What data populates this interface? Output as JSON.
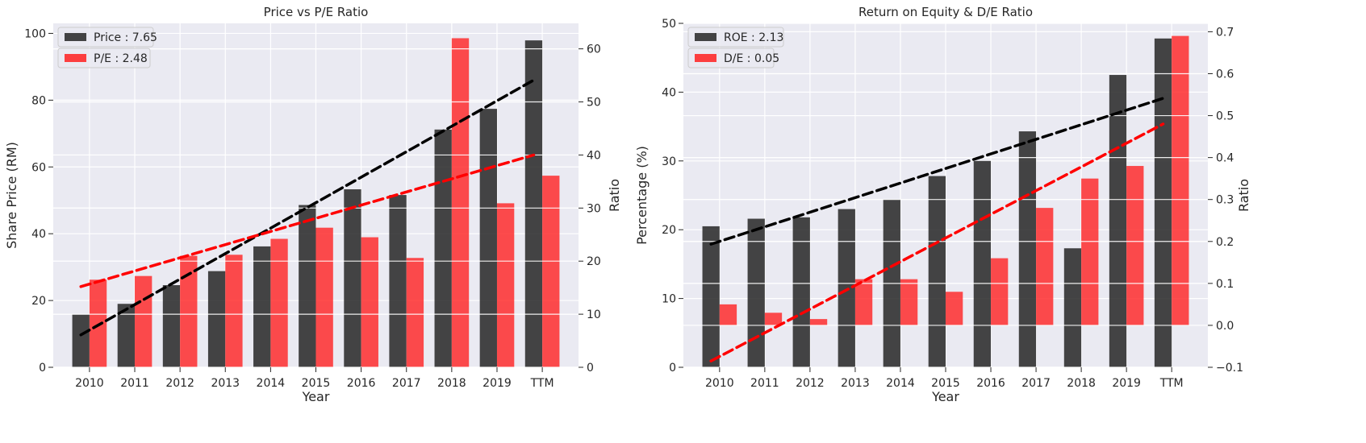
{
  "colors": {
    "background": "#eaeaf2",
    "grid": "#ffffff",
    "dark_bar": "#262626",
    "red_bar": "#ff2020",
    "trend_dark": "#000000",
    "trend_red": "#ff0000"
  },
  "chart_data": [
    {
      "type": "bar",
      "title": "Price vs P/E Ratio",
      "xlabel": "Year",
      "ylabel": "Share Price (RM)",
      "ylabel_right": "Ratio",
      "categories": [
        "2010",
        "2011",
        "2012",
        "2013",
        "2014",
        "2015",
        "2016",
        "2017",
        "2018",
        "2019",
        "TTM"
      ],
      "ylim": [
        0,
        103
      ],
      "ylim_right": [
        0,
        64.8
      ],
      "yticks": [
        "0",
        "20",
        "40",
        "60",
        "80",
        "100"
      ],
      "yticks_right": [
        "0",
        "10",
        "20",
        "30",
        "40",
        "50",
        "60"
      ],
      "legend_position": "upper-left",
      "series": [
        {
          "name": "Price : 7.65",
          "axis": "left",
          "values": [
            15.8,
            19.0,
            24.6,
            28.8,
            36.2,
            48.6,
            53.3,
            51.6,
            71.2,
            77.4,
            97.9
          ]
        },
        {
          "name": "P/E : 2.48",
          "axis": "right",
          "values": [
            16.5,
            17.2,
            21.0,
            21.2,
            24.2,
            26.3,
            24.5,
            20.6,
            62.0,
            30.9,
            36.1
          ]
        }
      ],
      "trendlines": [
        {
          "axis": "left",
          "start": 9.7,
          "end": 86.0
        },
        {
          "axis": "right",
          "start": 15.2,
          "end": 40.0
        }
      ]
    },
    {
      "type": "bar",
      "title": "Return on Equity & D/E Ratio",
      "xlabel": "Year",
      "ylabel": "Percentage (%)",
      "ylabel_right": "Ratio",
      "categories": [
        "2010",
        "2011",
        "2012",
        "2013",
        "2014",
        "2015",
        "2016",
        "2017",
        "2018",
        "2019",
        "TTM"
      ],
      "ylim": [
        0,
        50
      ],
      "ylim_right": [
        -0.1,
        0.72
      ],
      "yticks": [
        "0",
        "10",
        "20",
        "30",
        "40",
        "50"
      ],
      "yticks_right": [
        "−0.1",
        "0.0",
        "0.1",
        "0.2",
        "0.3",
        "0.4",
        "0.5",
        "0.6",
        "0.7"
      ],
      "legend_position": "upper-left",
      "series": [
        {
          "name": "ROE : 2.13",
          "axis": "left",
          "values": [
            20.5,
            21.6,
            21.8,
            23.0,
            24.4,
            27.8,
            30.0,
            34.3,
            17.3,
            42.5,
            47.8
          ]
        },
        {
          "name": "D/E : 0.05",
          "axis": "right",
          "values": [
            0.05,
            0.03,
            0.015,
            0.11,
            0.11,
            0.08,
            0.16,
            0.28,
            0.35,
            0.38,
            0.69
          ]
        }
      ],
      "trendlines": [
        {
          "axis": "left",
          "start": 17.9,
          "end": 39.1
        },
        {
          "axis": "right",
          "start": -0.085,
          "end": 0.48
        }
      ]
    }
  ]
}
